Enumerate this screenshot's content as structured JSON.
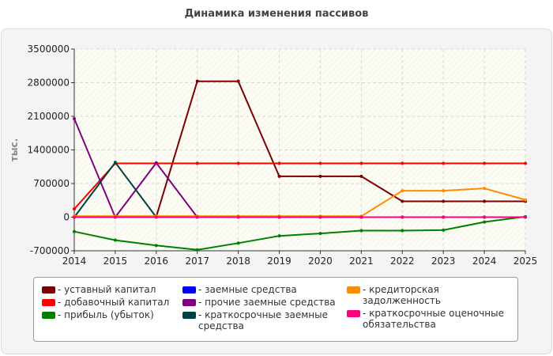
{
  "title": "Динамика изменения пассивов",
  "chart_data": {
    "type": "line",
    "ylabel": "тыс.",
    "xlabel": "",
    "x": [
      2014,
      2015,
      2016,
      2017,
      2018,
      2019,
      2020,
      2021,
      2022,
      2023,
      2024,
      2025
    ],
    "ylim": [
      -700000,
      3500000
    ],
    "yticks": [
      -700000,
      0,
      700000,
      1400000,
      2100000,
      2800000,
      3500000
    ],
    "grid": true,
    "legend_position": "bottom",
    "series": [
      {
        "name": "- уставный капитал",
        "color": "#7b0000",
        "values": [
          10000,
          10000,
          10000,
          2830000,
          2830000,
          850000,
          850000,
          850000,
          330000,
          330000,
          330000,
          330000
        ]
      },
      {
        "name": "- добавочный капитал",
        "color": "#ff0000",
        "values": [
          170000,
          1120000,
          1120000,
          1120000,
          1120000,
          1120000,
          1120000,
          1120000,
          1120000,
          1120000,
          1120000,
          1120000
        ]
      },
      {
        "name": "- прибыль (убыток)",
        "color": "#008000",
        "values": [
          -300000,
          -480000,
          -590000,
          -680000,
          -540000,
          -390000,
          -340000,
          -280000,
          -280000,
          -270000,
          -100000,
          10000
        ]
      },
      {
        "name": "- заемные средства",
        "color": "#0000ff",
        "values": [
          0,
          0,
          0,
          0,
          0,
          0,
          0,
          0,
          0,
          0,
          0,
          0
        ]
      },
      {
        "name": "- прочие заемные средства",
        "color": "#800080",
        "values": [
          2050000,
          0,
          1130000,
          0,
          0,
          0,
          0,
          0,
          0,
          0,
          0,
          0
        ]
      },
      {
        "name": "- краткосрочные заемные средства",
        "color": "#004040",
        "values": [
          0,
          1140000,
          0,
          0,
          0,
          0,
          0,
          0,
          0,
          0,
          0,
          0
        ]
      },
      {
        "name": "- кредиторская задолженность",
        "color": "#ff8c00",
        "values": [
          20000,
          20000,
          20000,
          20000,
          20000,
          20000,
          20000,
          20000,
          550000,
          550000,
          600000,
          360000
        ]
      },
      {
        "name": "- краткосрочные оценочные обязательства",
        "color": "#ff0080",
        "values": [
          0,
          0,
          0,
          0,
          0,
          0,
          0,
          0,
          0,
          0,
          0,
          0
        ]
      }
    ]
  },
  "legend": {
    "items": [
      {
        "label": "- уставный капитал",
        "color": "#7b0000"
      },
      {
        "label": "- добавочный капитал",
        "color": "#ff0000"
      },
      {
        "label": "- прибыль (убыток)",
        "color": "#008000"
      },
      {
        "label": "- заемные средства",
        "color": "#0000ff"
      },
      {
        "label": "- прочие заемные средства",
        "color": "#800080"
      },
      {
        "label": "- краткосрочные заемные средства",
        "color": "#004040"
      },
      {
        "label": "- кредиторская задолженность",
        "color": "#ff8c00"
      },
      {
        "label": "- краткосрочные оценочные обязательства",
        "color": "#ff0080"
      }
    ]
  }
}
